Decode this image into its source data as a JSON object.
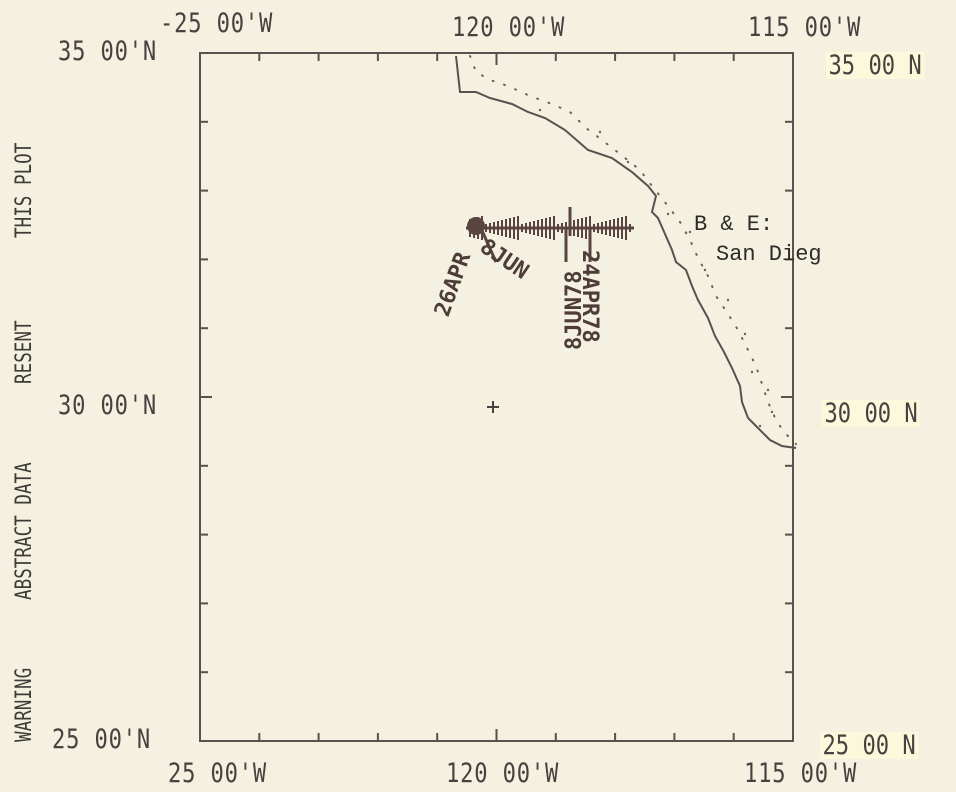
{
  "axes": {
    "lon_top": [
      "-25 00'W",
      "120 00'W",
      "115 00'W"
    ],
    "lon_bottom": [
      "25 00'W",
      "120 00'W",
      "115 00'W"
    ],
    "lat_left": [
      "35 00'N",
      "30 00'N",
      "25 00'N"
    ],
    "lat_right": [
      "35 00 N",
      "30 00 N",
      "25 00 N"
    ],
    "lon_range": [
      -125,
      -115
    ],
    "lat_range": [
      25,
      35
    ]
  },
  "side_text": [
    "THIS PLOT",
    "RESENT",
    "ABSTRACT DATA",
    "WARNING"
  ],
  "annotation": {
    "line1": "B & E:",
    "line2": "San Dieg"
  },
  "track_labels": {
    "start": "26APR",
    "mid": "8JUN",
    "end_a": "24APR78",
    "end_b": "8JUN78"
  },
  "colors": {
    "background": "#f4f1e0",
    "ink": "#4a4040",
    "track": "#5a4442"
  }
}
